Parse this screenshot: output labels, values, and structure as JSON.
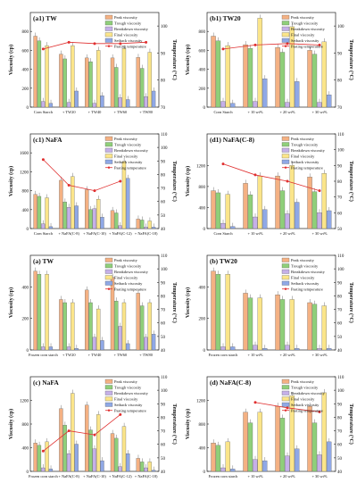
{
  "figure": {
    "legend_labels": [
      "Peak viscosity",
      "Trough viscosity",
      "Breakdown viscosity",
      "Final viscosity",
      "Setback viscosity",
      "Pasting temperature"
    ],
    "series_colors": {
      "peak": "#f4b183",
      "trough": "#8fcf7a",
      "breakdown": "#c5b0e8",
      "final": "#fbe58a",
      "setback": "#8fa8e6",
      "temp": "#e03030"
    }
  },
  "chart_data": [
    {
      "type": "bar",
      "panel_label": "(a1) TW",
      "ylabel": "Viscosity (cp)",
      "y2label": "Temperature (°C)",
      "ylim": [
        0,
        1000
      ],
      "yticks": [
        0,
        200,
        400,
        600,
        800
      ],
      "y2lim": [
        70,
        105
      ],
      "y2ticks": [
        70,
        80,
        90,
        100
      ],
      "categories": [
        "Corn Starch",
        "+ TW20",
        "+ TW40",
        "+ TW60",
        "+ TW80"
      ],
      "series": [
        {
          "name": "Peak viscosity",
          "values": [
            750,
            560,
            520,
            520,
            525
          ]
        },
        {
          "name": "Trough viscosity",
          "values": [
            700,
            510,
            480,
            420,
            410
          ]
        },
        {
          "name": "Breakdown viscosity",
          "values": [
            60,
            50,
            40,
            100,
            110
          ]
        },
        {
          "name": "Final viscosity",
          "values": [
            650,
            650,
            600,
            620,
            580
          ]
        },
        {
          "name": "Setback viscosity",
          "values": [
            40,
            170,
            120,
            80,
            170
          ]
        }
      ],
      "temperature": [
        91.5,
        94.0,
        93.5,
        93.5,
        94.0
      ]
    },
    {
      "type": "bar",
      "panel_label": "(b1) TW20",
      "ylabel": "Viscosity (cp)",
      "y2label": "Temperature (°C)",
      "ylim": [
        0,
        1000
      ],
      "yticks": [
        0,
        200,
        400,
        600,
        800
      ],
      "y2lim": [
        70,
        105
      ],
      "y2ticks": [
        70,
        80,
        90,
        100
      ],
      "categories": [
        "Corn Starch",
        "+ 10 wt%",
        "+ 20 wt%",
        "+ 30 wt%"
      ],
      "series": [
        {
          "name": "Peak viscosity",
          "values": [
            750,
            660,
            630,
            600
          ]
        },
        {
          "name": "Trough viscosity",
          "values": [
            700,
            620,
            580,
            560
          ]
        },
        {
          "name": "Breakdown viscosity",
          "values": [
            60,
            60,
            50,
            50
          ]
        },
        {
          "name": "Final viscosity",
          "values": [
            650,
            940,
            850,
            690
          ]
        },
        {
          "name": "Setback viscosity",
          "values": [
            40,
            300,
            270,
            130
          ]
        }
      ],
      "temperature": [
        91.5,
        93.0,
        93.5,
        93.0
      ]
    },
    {
      "type": "bar",
      "panel_label": "(c1) NaFA",
      "ylabel": "Viscosity (cp)",
      "y2label": "Temperature (°C)",
      "ylim": [
        0,
        2000
      ],
      "yticks": [
        0,
        400,
        800,
        1200,
        1600
      ],
      "y2lim": [
        40,
        110
      ],
      "y2ticks": [
        40,
        50,
        60,
        70,
        80,
        90,
        100,
        110
      ],
      "categories": [
        "Corn Starch",
        "+ NaFA(C-8)",
        "+ NaFA(C-10)",
        "+ NaFA(C-12)",
        "+ NaFA(C-18)"
      ],
      "series": [
        {
          "name": "Peak viscosity",
          "values": [
            720,
            1020,
            820,
            380,
            200
          ]
        },
        {
          "name": "Trough viscosity",
          "values": [
            680,
            560,
            400,
            330,
            180
          ]
        },
        {
          "name": "Breakdown viscosity",
          "values": [
            100,
            450,
            420,
            60,
            30
          ]
        },
        {
          "name": "Final viscosity",
          "values": [
            650,
            1100,
            620,
            1420,
            160
          ]
        },
        {
          "name": "Setback viscosity",
          "values": [
            40,
            480,
            240,
            1060,
            30
          ]
        }
      ],
      "temperature": [
        91.0,
        72.0,
        68.0,
        75.0,
        null
      ]
    },
    {
      "type": "bar",
      "panel_label": "(d1) NaFA(C-8)",
      "ylabel": "Viscosity (cp)",
      "y2label": "Temperature (°C)",
      "ylim": [
        0,
        1800
      ],
      "yticks": [
        0,
        400,
        800,
        1200
      ],
      "y2lim": [
        50,
        110
      ],
      "y2ticks": [
        50,
        60,
        70,
        80,
        90,
        100,
        110
      ],
      "categories": [
        "Corn Starch",
        "+ 10 wt%",
        "+ 20 wt%",
        "+ 30 wt%"
      ],
      "series": [
        {
          "name": "Peak viscosity",
          "values": [
            720,
            860,
            1000,
            980
          ]
        },
        {
          "name": "Trough viscosity",
          "values": [
            680,
            640,
            720,
            700
          ]
        },
        {
          "name": "Breakdown viscosity",
          "values": [
            100,
            220,
            280,
            300
          ]
        },
        {
          "name": "Final viscosity",
          "values": [
            650,
            1000,
            1200,
            1050
          ]
        },
        {
          "name": "Setback viscosity",
          "values": [
            40,
            360,
            500,
            340
          ]
        }
      ],
      "temperature": [
        91.0,
        84.0,
        80.0,
        74.0
      ]
    },
    {
      "type": "bar",
      "panel_label": "(a) TW",
      "ylabel": "Viscosity (cp)",
      "y2label": "Temperature (°C)",
      "ylim": [
        0,
        600
      ],
      "yticks": [
        0,
        200,
        400
      ],
      "y2lim": [
        40,
        110
      ],
      "y2ticks": [
        40,
        50,
        60,
        70,
        80,
        90,
        100,
        110
      ],
      "categories": [
        "Frozen corn starch",
        "+ TW20",
        "+ TW40",
        "+ TW60",
        "+ TW80"
      ],
      "series": [
        {
          "name": "Peak viscosity",
          "values": [
            500,
            320,
            380,
            460,
            360
          ]
        },
        {
          "name": "Trough viscosity",
          "values": [
            480,
            300,
            300,
            310,
            280
          ]
        },
        {
          "name": "Breakdown viscosity",
          "values": [
            20,
            20,
            80,
            150,
            80
          ]
        },
        {
          "name": "Final viscosity",
          "values": [
            480,
            300,
            260,
            300,
            300
          ]
        },
        {
          "name": "Setback viscosity",
          "values": [
            20,
            10,
            60,
            40,
            100
          ]
        }
      ],
      "temperature": []
    },
    {
      "type": "bar",
      "panel_label": "(b) TW20",
      "ylabel": "Viscosity (cp)",
      "y2label": "Temperature (°C)",
      "ylim": [
        0,
        600
      ],
      "yticks": [
        0,
        200,
        400
      ],
      "y2lim": [
        40,
        110
      ],
      "y2ticks": [
        40,
        50,
        60,
        70,
        80,
        90,
        100,
        110
      ],
      "categories": [
        "Frozen corn starch",
        "+ 10 wt%",
        "+ 20 wt%",
        "+ 30 wt%"
      ],
      "series": [
        {
          "name": "Peak viscosity",
          "values": [
            500,
            360,
            350,
            300
          ]
        },
        {
          "name": "Trough viscosity",
          "values": [
            480,
            330,
            320,
            290
          ]
        },
        {
          "name": "Breakdown viscosity",
          "values": [
            20,
            30,
            30,
            10
          ]
        },
        {
          "name": "Final viscosity",
          "values": [
            480,
            330,
            320,
            280
          ]
        },
        {
          "name": "Setback viscosity",
          "values": [
            20,
            10,
            10,
            10
          ]
        }
      ],
      "temperature": []
    },
    {
      "type": "bar",
      "panel_label": "(c) NaFA",
      "ylabel": "Viscosity (cp)",
      "y2label": "Temperature (°C)",
      "ylim": [
        0,
        1600
      ],
      "yticks": [
        0,
        400,
        800,
        1200
      ],
      "y2lim": [
        40,
        110
      ],
      "y2ticks": [
        40,
        50,
        60,
        70,
        80,
        90,
        100,
        110
      ],
      "categories": [
        "Frozen corn starch",
        "+ NaFA(C-8)",
        "+ NaFA(C-10)",
        "+ NaFA(C-12)",
        "+ NaFA(C-18)"
      ],
      "series": [
        {
          "name": "Peak viscosity",
          "values": [
            480,
            1060,
            1120,
            640,
            220
          ]
        },
        {
          "name": "Trough viscosity",
          "values": [
            440,
            780,
            700,
            560,
            160
          ]
        },
        {
          "name": "Breakdown viscosity",
          "values": [
            60,
            300,
            380,
            80,
            60
          ]
        },
        {
          "name": "Final viscosity",
          "values": [
            500,
            1320,
            960,
            760,
            160
          ]
        },
        {
          "name": "Setback viscosity",
          "values": [
            40,
            460,
            180,
            300,
            20
          ]
        }
      ],
      "temperature": [
        55.0,
        70.0,
        67.0,
        82.0,
        null
      ]
    },
    {
      "type": "bar",
      "panel_label": "(d) NaFA(C-8)",
      "ylabel": "Viscosity (cp)",
      "y2label": "Temperature (°C)",
      "ylim": [
        0,
        1600
      ],
      "yticks": [
        0,
        400,
        800,
        1200
      ],
      "y2lim": [
        40,
        110
      ],
      "y2ticks": [
        40,
        50,
        60,
        70,
        80,
        90,
        100,
        110
      ],
      "categories": [
        "Frozen corn starch",
        "+ 10 wt%",
        "+ 20 wt%",
        "+ 30 wt%"
      ],
      "series": [
        {
          "name": "Peak viscosity",
          "values": [
            480,
            1000,
            1100,
            1100
          ]
        },
        {
          "name": "Trough viscosity",
          "values": [
            440,
            820,
            900,
            820
          ]
        },
        {
          "name": "Breakdown viscosity",
          "values": [
            60,
            200,
            260,
            280
          ]
        },
        {
          "name": "Final viscosity",
          "values": [
            500,
            1000,
            1280,
            1330
          ]
        },
        {
          "name": "Setback viscosity",
          "values": [
            40,
            180,
            380,
            500
          ]
        }
      ],
      "temperature": [
        null,
        91.0,
        87.0,
        84.0
      ]
    }
  ]
}
